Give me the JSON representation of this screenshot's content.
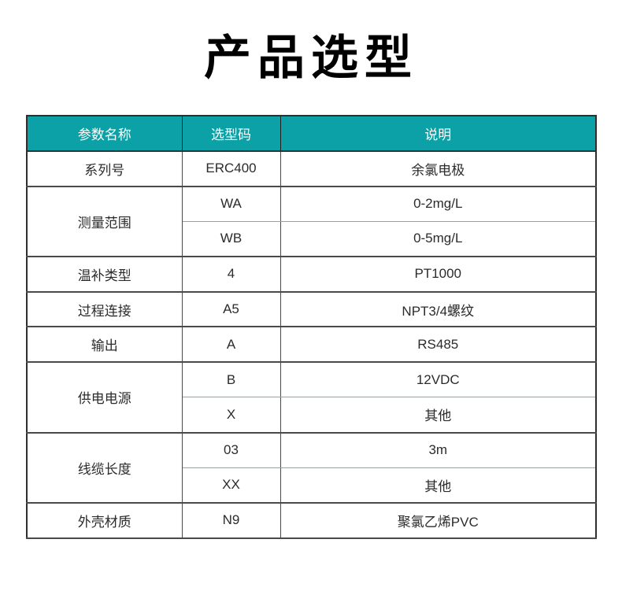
{
  "theme": {
    "accent": "#0ba1a6"
  },
  "page": {
    "title": "产品选型"
  },
  "table": {
    "headers": [
      "参数名称",
      "选型码",
      "说明"
    ],
    "groups": [
      {
        "param": "系列号",
        "rows": [
          {
            "code": "ERC400",
            "desc": "余氯电极"
          }
        ]
      },
      {
        "param": "测量范围",
        "rows": [
          {
            "code": "WA",
            "desc": "0-2mg/L"
          },
          {
            "code": "WB",
            "desc": "0-5mg/L"
          }
        ]
      },
      {
        "param": "温补类型",
        "rows": [
          {
            "code": "4",
            "desc": "PT1000"
          }
        ]
      },
      {
        "param": "过程连接",
        "rows": [
          {
            "code": "A5",
            "desc": "NPT3/4螺纹"
          }
        ]
      },
      {
        "param": "输出",
        "rows": [
          {
            "code": "A",
            "desc": "RS485"
          }
        ]
      },
      {
        "param": "供电电源",
        "rows": [
          {
            "code": "B",
            "desc": "12VDC"
          },
          {
            "code": "X",
            "desc": "其他"
          }
        ]
      },
      {
        "param": "线缆长度",
        "rows": [
          {
            "code": "03",
            "desc": "3m"
          },
          {
            "code": "XX",
            "desc": "其他"
          }
        ]
      },
      {
        "param": "外壳材质",
        "rows": [
          {
            "code": "N9",
            "desc": "聚氯乙烯PVC"
          }
        ]
      }
    ]
  }
}
